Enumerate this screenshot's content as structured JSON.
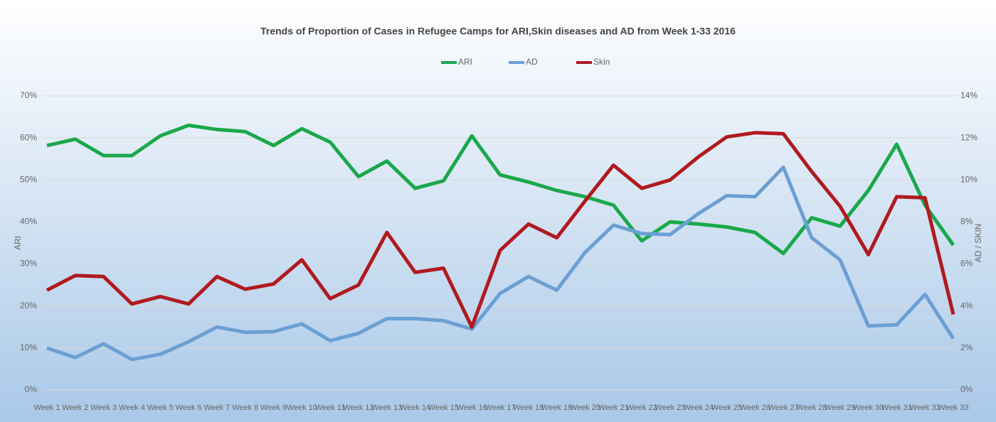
{
  "chart_data": {
    "type": "line",
    "title": "Trends of Proportion of Cases in Refugee Camps for ARI,Skin diseases and AD from Week 1-33 2016",
    "ylabel": "ARI",
    "y2label": "AD / SKIN",
    "categories": [
      "Week 1",
      "Week 2",
      "Week 3",
      "Week 4",
      "Week 5",
      "Week 6",
      "Week 7",
      "Week 8",
      "Week 9",
      "Week 10",
      "Week 11",
      "Week 12",
      "Week 13",
      "Week 14",
      "Week 15",
      "Week 16",
      "Week 17",
      "Week 18",
      "Week 19",
      "Week 20",
      "Week 21",
      "Week 22",
      "Week 23",
      "Week 24",
      "Week 25",
      "Week 26",
      "Week 27",
      "Week 28",
      "Week 29",
      "Week 30",
      "Week 31",
      "Week 32",
      "Week 33"
    ],
    "series": [
      {
        "name": "ARI",
        "color": "#1aa84a",
        "axis": "y",
        "values": [
          58.2,
          59.7,
          55.8,
          55.8,
          60.5,
          63,
          62,
          61.5,
          58.2,
          62.2,
          59,
          50.8,
          54.5,
          48,
          49.8,
          60.5,
          51.2,
          49.5,
          47.5,
          46,
          44,
          35.5,
          40,
          39.5,
          38.8,
          37.5,
          32.5,
          41,
          39,
          47.5,
          58.5,
          44,
          34.5
        ]
      },
      {
        "name": "AD",
        "color": "#6b9fd4",
        "axis": "y2",
        "values": [
          2.0,
          1.55,
          2.2,
          1.45,
          1.7,
          2.3,
          3.0,
          2.75,
          2.78,
          3.15,
          2.35,
          2.7,
          3.4,
          3.4,
          3.3,
          2.9,
          4.6,
          5.4,
          4.75,
          6.55,
          7.85,
          7.45,
          7.4,
          8.4,
          9.25,
          9.2,
          10.6,
          7.25,
          6.2,
          3.05,
          3.1,
          4.55,
          2.45
        ]
      },
      {
        "name": "Skin",
        "color": "#b01a1f",
        "axis": "y2",
        "values": [
          4.75,
          5.45,
          5.4,
          4.1,
          4.45,
          4.1,
          5.4,
          4.8,
          5.05,
          6.2,
          4.35,
          5.0,
          7.5,
          5.6,
          5.8,
          3.0,
          6.65,
          7.9,
          7.25,
          9.0,
          10.7,
          9.6,
          10.0,
          11.1,
          12.05,
          12.25,
          12.2,
          10.4,
          8.75,
          6.45,
          9.2,
          9.15,
          3.6
        ]
      }
    ],
    "ylim": [
      0,
      70
    ],
    "yticks": [
      {
        "value": 0,
        "label": "0%"
      },
      {
        "value": 10,
        "label": "10%"
      },
      {
        "value": 20,
        "label": "20%"
      },
      {
        "value": 30,
        "label": "30%"
      },
      {
        "value": 40,
        "label": "40%"
      },
      {
        "value": 50,
        "label": "50%"
      },
      {
        "value": 60,
        "label": "60%"
      },
      {
        "value": 70,
        "label": "70%"
      }
    ],
    "y2lim": [
      0,
      14
    ],
    "y2ticks": [
      {
        "value": 0,
        "label": "0%"
      },
      {
        "value": 2,
        "label": "2%"
      },
      {
        "value": 4,
        "label": "4%"
      },
      {
        "value": 6,
        "label": "6%"
      },
      {
        "value": 8,
        "label": "8%"
      },
      {
        "value": 10,
        "label": "10%"
      },
      {
        "value": 12,
        "label": "12%"
      },
      {
        "value": 14,
        "label": "14%"
      }
    ],
    "grid": true,
    "legend": "top"
  }
}
